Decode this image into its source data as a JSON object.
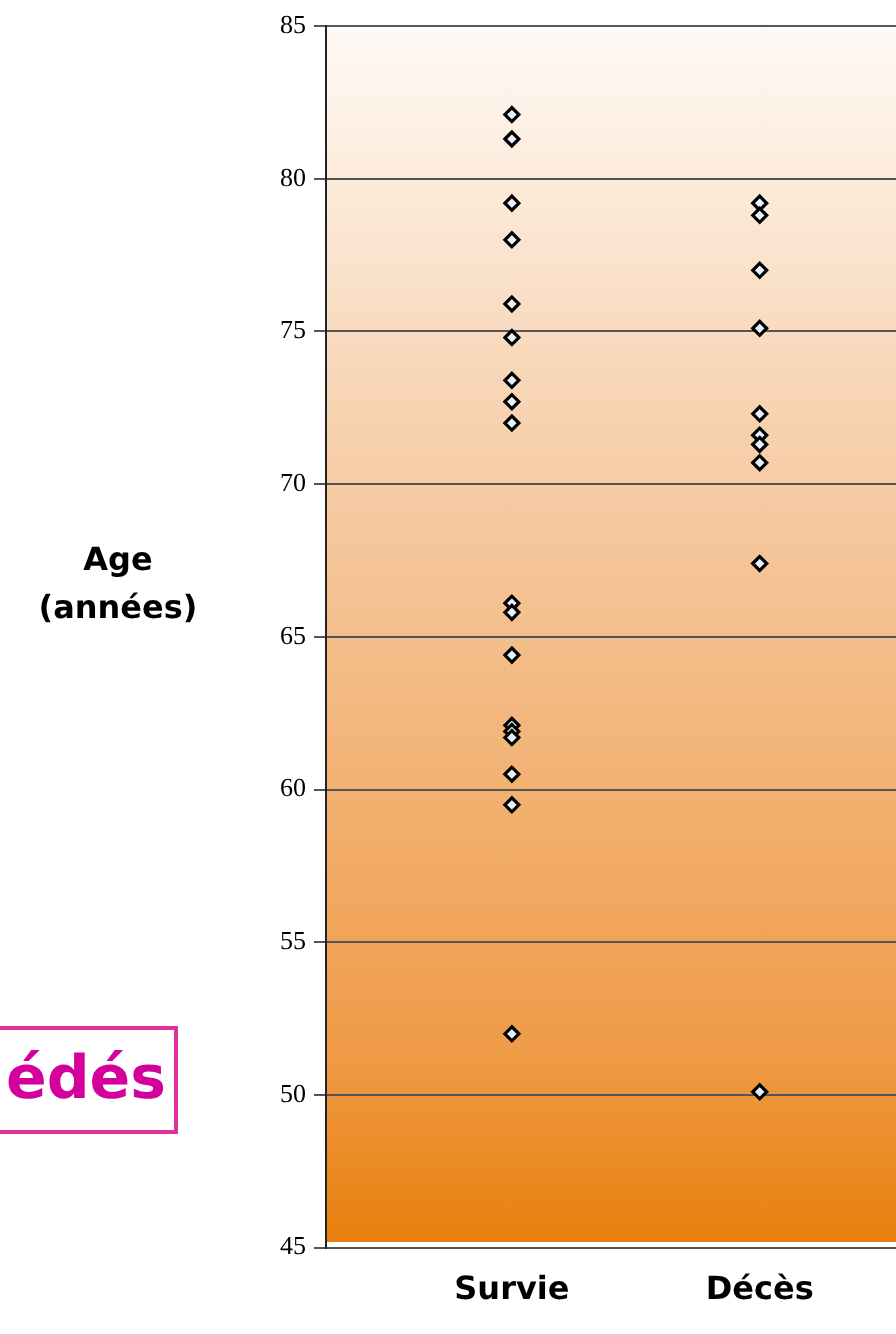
{
  "chart_data": {
    "type": "scatter",
    "ylabel": "Age\n(années)",
    "categories": [
      "Survie",
      "Décès"
    ],
    "series": [
      {
        "color": "#000000",
        "x": [
          "Survie",
          "Survie",
          "Survie",
          "Survie",
          "Survie",
          "Survie",
          "Survie",
          "Survie",
          "Survie",
          "Survie",
          "Survie",
          "Survie",
          "Survie",
          "Survie",
          "Survie",
          "Survie",
          "Survie",
          "Survie"
        ],
        "values": [
          82.1,
          81.3,
          79.2,
          78.0,
          75.9,
          74.8,
          73.4,
          72.7,
          72.0,
          66.1,
          65.8,
          64.4,
          62.1,
          61.9,
          61.7,
          60.5,
          59.5,
          52.0
        ]
      },
      {
        "color": "#000000",
        "x": [
          "Décès",
          "Décès",
          "Décès",
          "Décès",
          "Décès",
          "Décès",
          "Décès",
          "Décès",
          "Décès",
          "Décès"
        ],
        "values": [
          79.2,
          78.8,
          77.0,
          75.1,
          72.3,
          71.6,
          71.3,
          70.7,
          67.4,
          50.1
        ]
      }
    ],
    "ylim": [
      45,
      85
    ],
    "yticks": [
      45,
      50,
      55,
      60,
      65,
      70,
      75,
      80,
      85
    ],
    "grid": "y",
    "legend": false,
    "marker": "diamond",
    "annotations": [
      "édés"
    ]
  }
}
